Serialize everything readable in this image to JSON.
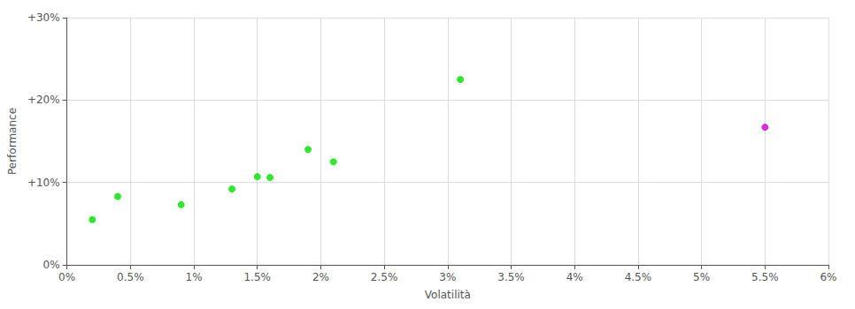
{
  "chart_data": {
    "type": "scatter",
    "xlabel": "Volatilità",
    "ylabel": "Performance",
    "xlim": [
      0.0,
      0.06
    ],
    "ylim": [
      0.0,
      0.3
    ],
    "xticks": [
      {
        "value": 0.0,
        "label": "0%"
      },
      {
        "value": 0.005,
        "label": "0.5%"
      },
      {
        "value": 0.01,
        "label": "1%"
      },
      {
        "value": 0.015,
        "label": "1.5%"
      },
      {
        "value": 0.02,
        "label": "2%"
      },
      {
        "value": 0.025,
        "label": "2.5%"
      },
      {
        "value": 0.03,
        "label": "3%"
      },
      {
        "value": 0.035,
        "label": "3.5%"
      },
      {
        "value": 0.04,
        "label": "4%"
      },
      {
        "value": 0.045,
        "label": "4.5%"
      },
      {
        "value": 0.05,
        "label": "5%"
      },
      {
        "value": 0.055,
        "label": "5.5%"
      },
      {
        "value": 0.06,
        "label": "6%"
      }
    ],
    "yticks": [
      {
        "value": 0.0,
        "label": "0%"
      },
      {
        "value": 0.1,
        "label": "+10%"
      },
      {
        "value": 0.2,
        "label": "+20%"
      },
      {
        "value": 0.3,
        "label": "+30%"
      }
    ],
    "grid": true,
    "series": [
      {
        "color": "#00dd00",
        "x": [
          0.002,
          0.004,
          0.009,
          0.013,
          0.015,
          0.016,
          0.019,
          0.021,
          0.031
        ],
        "values": [
          0.055,
          0.083,
          0.073,
          0.092,
          0.107,
          0.106,
          0.14,
          0.125,
          0.225
        ]
      },
      {
        "color": "#cc00cc",
        "x": [
          0.055
        ],
        "values": [
          0.167
        ]
      }
    ]
  }
}
